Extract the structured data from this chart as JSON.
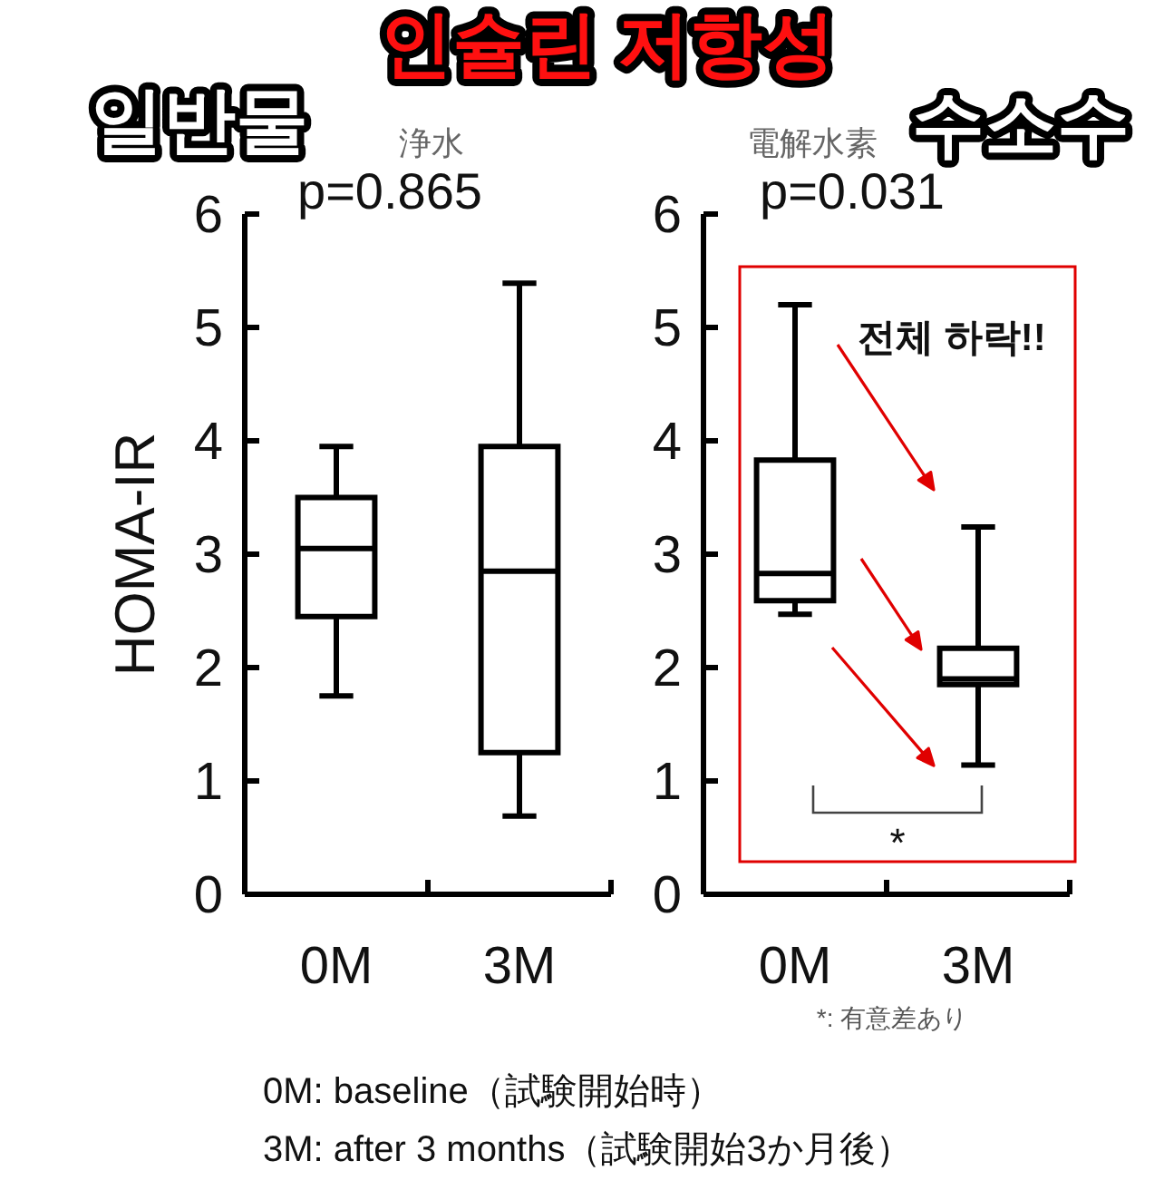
{
  "chart_data": [
    {
      "type": "box",
      "title": "인슐린 저항성",
      "subtitle": "浄水",
      "ylabel": "HOMA-IR",
      "categories": [
        "0M",
        "3M"
      ],
      "ylim": [
        0,
        6
      ],
      "yticks": [
        0,
        1,
        2,
        3,
        4,
        5,
        6
      ],
      "boxes": [
        {
          "low": 1.75,
          "q1": 2.45,
          "median": 3.05,
          "q3": 3.5,
          "high": 3.95
        },
        {
          "low": 0.69,
          "q1": 1.25,
          "median": 2.85,
          "q3": 3.95,
          "high": 5.39
        }
      ],
      "annotations": [
        "일반물",
        "p=0.865"
      ]
    },
    {
      "type": "box",
      "subtitle": "電解水素",
      "categories": [
        "0M",
        "3M"
      ],
      "ylim": [
        0,
        6
      ],
      "yticks": [
        0,
        1,
        2,
        3,
        4,
        5,
        6
      ],
      "boxes": [
        {
          "low": 2.47,
          "q1": 2.59,
          "median": 2.83,
          "q3": 3.83,
          "high": 5.2
        },
        {
          "low": 1.14,
          "q1": 1.85,
          "median": 1.9,
          "q3": 2.17,
          "high": 3.24
        }
      ],
      "annotations": [
        "수소수",
        "p=0.031",
        "전체 하락!!",
        "*",
        "*: 有意差あり",
        "0M: baseline（試験開始時）",
        "3M: after 3 months（試験開始3か月後）"
      ]
    }
  ]
}
